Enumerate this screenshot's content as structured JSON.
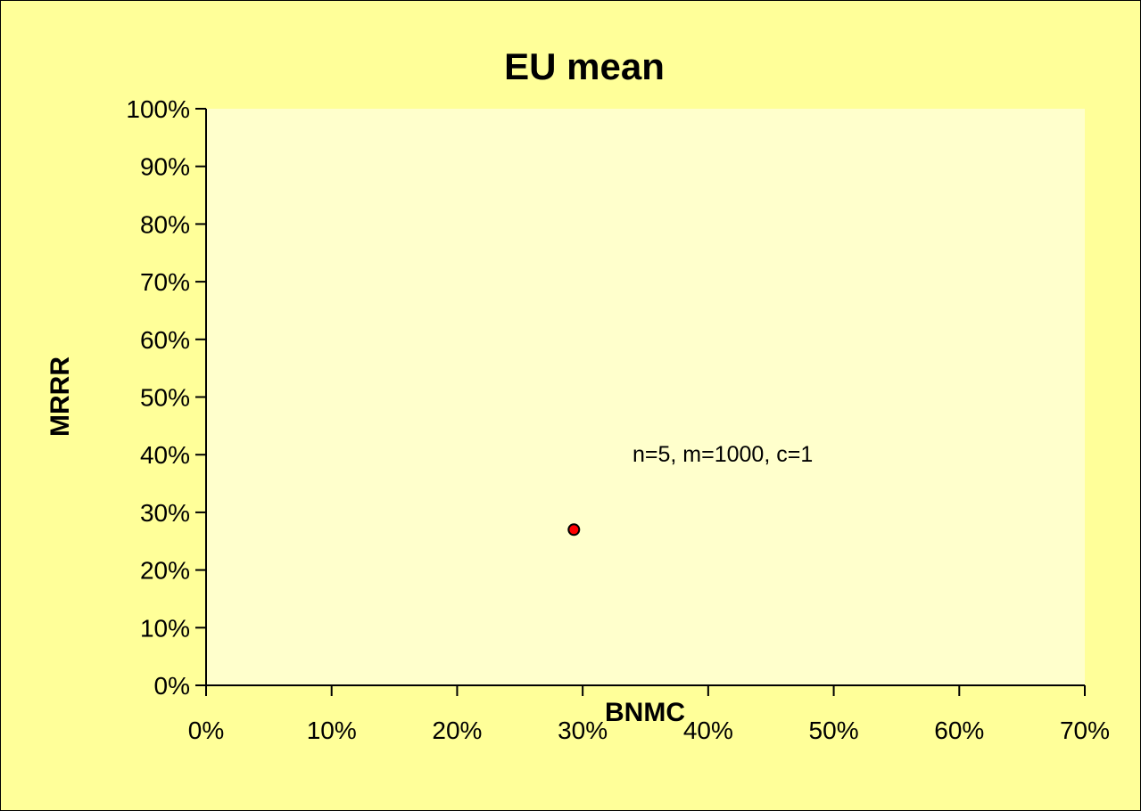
{
  "chart_data": {
    "type": "scatter",
    "title": "EU mean",
    "xlabel": "BNMC",
    "ylabel": "MRRR",
    "xlim": [
      0,
      0.7
    ],
    "ylim": [
      0,
      1.0
    ],
    "x_ticks": [
      "0%",
      "10%",
      "20%",
      "30%",
      "40%",
      "50%",
      "60%",
      "70%"
    ],
    "y_ticks": [
      "0%",
      "10%",
      "20%",
      "30%",
      "40%",
      "50%",
      "60%",
      "70%",
      "80%",
      "90%",
      "100%"
    ],
    "grid": false,
    "legend": "none",
    "series": [
      {
        "points": [
          {
            "x": 0.293,
            "y": 0.27
          }
        ],
        "color": "#ff0000"
      }
    ],
    "annotation": "n=5, m=1000, c=1",
    "colors": {
      "background": "#ffff99",
      "plot_area": "#ffffcc",
      "marker": "#ff0000",
      "marker_edge": "#000000"
    }
  }
}
